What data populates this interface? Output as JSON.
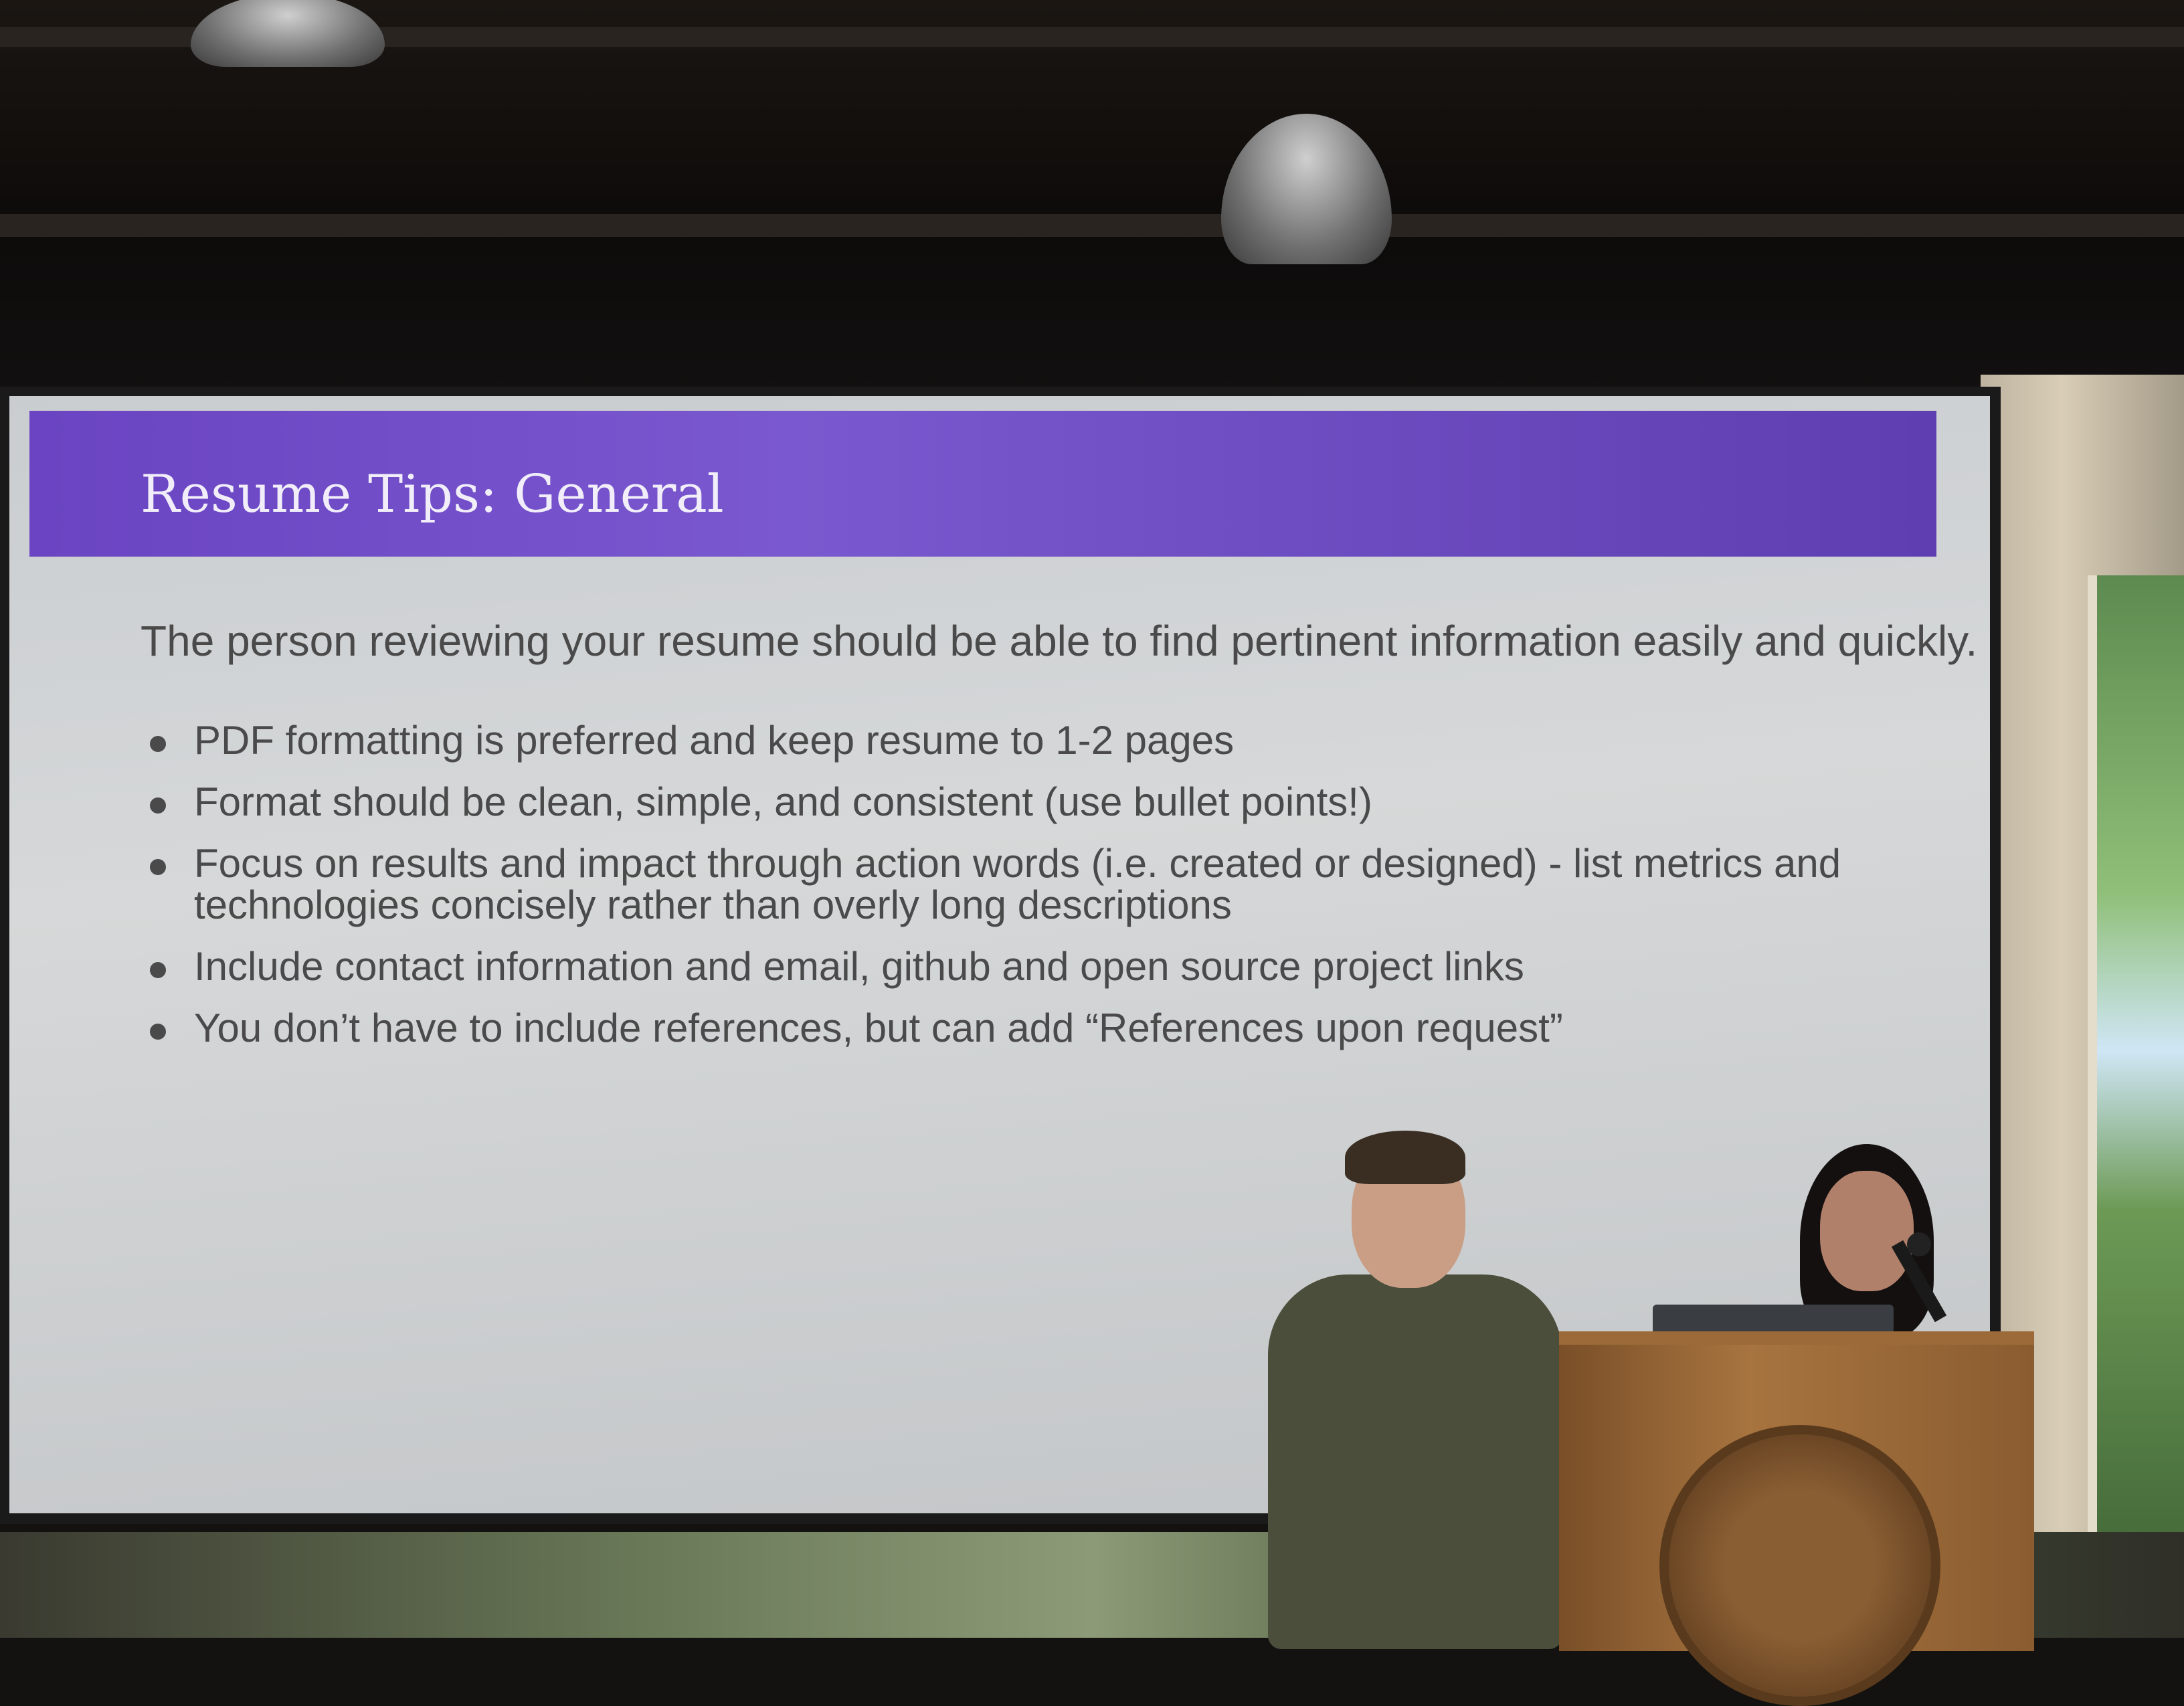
{
  "slide": {
    "title": "Resume Tips: General",
    "intro": "The person reviewing your resume should be able to find pertinent information easily and quickly.",
    "bullets": [
      "PDF formatting is preferred and keep resume to 1-2 pages",
      "Format should be clean, simple, and consistent (use bullet points!)",
      "Focus on results and impact through action words (i.e. created or designed) - list metrics and technologies concisely rather than overly long descriptions",
      "Include contact information and email, github and open source project links",
      "You don’t have to include references, but can add “References upon request”"
    ]
  },
  "colors": {
    "header_purple": "#6a44c2",
    "slide_text": "#4a4a4a",
    "podium_wood": "#a7743f"
  }
}
